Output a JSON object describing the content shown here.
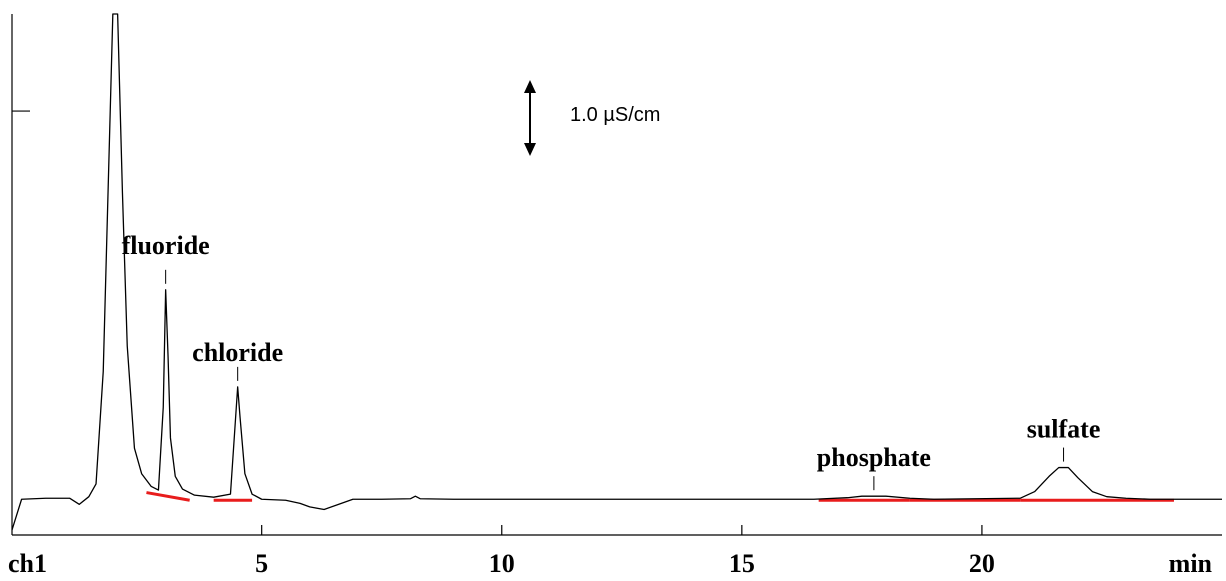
{
  "chart_data": {
    "type": "line",
    "channel": "ch1",
    "x_unit": "min",
    "xlim": [
      -0.2,
      25.0
    ],
    "ylim": [
      -0.7,
      9.5
    ],
    "x_ticks": [
      5,
      10,
      15,
      20
    ],
    "grid": false,
    "scale_bar": {
      "label": "1.0 µS/cm",
      "value": 1.0
    },
    "series": [
      {
        "points": [
          [
            -0.2,
            -0.6
          ],
          [
            0.0,
            0.0
          ],
          [
            0.5,
            0.02
          ],
          [
            1.0,
            0.02
          ],
          [
            1.2,
            -0.1
          ],
          [
            1.4,
            0.05
          ],
          [
            1.55,
            0.3
          ],
          [
            1.7,
            2.5
          ],
          [
            1.8,
            6.0
          ],
          [
            1.9,
            9.5
          ],
          [
            2.0,
            9.5
          ],
          [
            2.1,
            6.0
          ],
          [
            2.2,
            3.0
          ],
          [
            2.35,
            1.0
          ],
          [
            2.5,
            0.5
          ],
          [
            2.7,
            0.25
          ],
          [
            2.85,
            0.18
          ],
          [
            2.95,
            1.8
          ],
          [
            3.0,
            4.1
          ],
          [
            3.05,
            2.8
          ],
          [
            3.1,
            1.2
          ],
          [
            3.2,
            0.45
          ],
          [
            3.35,
            0.2
          ],
          [
            3.6,
            0.08
          ],
          [
            4.0,
            0.04
          ],
          [
            4.35,
            0.1
          ],
          [
            4.45,
            1.5
          ],
          [
            4.5,
            2.2
          ],
          [
            4.55,
            1.6
          ],
          [
            4.65,
            0.5
          ],
          [
            4.8,
            0.1
          ],
          [
            5.0,
            0.0
          ],
          [
            5.5,
            -0.02
          ],
          [
            5.8,
            -0.08
          ],
          [
            6.0,
            -0.15
          ],
          [
            6.3,
            -0.2
          ],
          [
            6.6,
            -0.1
          ],
          [
            6.9,
            0.0
          ],
          [
            7.5,
            0.0
          ],
          [
            8.1,
            0.01
          ],
          [
            8.2,
            0.06
          ],
          [
            8.3,
            0.01
          ],
          [
            9.0,
            0.0
          ],
          [
            16.5,
            0.0
          ],
          [
            17.2,
            0.03
          ],
          [
            17.5,
            0.06
          ],
          [
            18.0,
            0.06
          ],
          [
            18.5,
            0.02
          ],
          [
            19.0,
            0.0
          ],
          [
            20.8,
            0.02
          ],
          [
            21.1,
            0.15
          ],
          [
            21.4,
            0.45
          ],
          [
            21.6,
            0.62
          ],
          [
            21.8,
            0.62
          ],
          [
            22.0,
            0.42
          ],
          [
            22.3,
            0.15
          ],
          [
            22.6,
            0.05
          ],
          [
            23.0,
            0.02
          ],
          [
            23.5,
            0.0
          ],
          [
            25.0,
            0.0
          ]
        ]
      }
    ],
    "baselines": [
      {
        "x": [
          2.6,
          3.5
        ],
        "y": [
          0.15,
          0.0
        ]
      },
      {
        "x": [
          4.0,
          4.8
        ],
        "y": [
          0.0,
          0.0
        ]
      },
      {
        "x": [
          16.6,
          18.5
        ],
        "y": [
          0.0,
          0.0
        ]
      },
      {
        "x": [
          18.5,
          20.8
        ],
        "y": [
          0.0,
          0.0
        ]
      },
      {
        "x": [
          20.8,
          24.0
        ],
        "y": [
          0.0,
          0.0
        ]
      }
    ],
    "peaks": [
      {
        "name": "fluoride",
        "x": 3.0,
        "y": 4.1
      },
      {
        "name": "chloride",
        "x": 4.5,
        "y": 2.2
      },
      {
        "name": "phosphate",
        "x": 17.75,
        "y": 0.06
      },
      {
        "name": "sulfate",
        "x": 21.7,
        "y": 0.62
      }
    ],
    "colors": {
      "trace": "#000000",
      "baseline": "#e81c1c",
      "axis": "#000000"
    }
  }
}
